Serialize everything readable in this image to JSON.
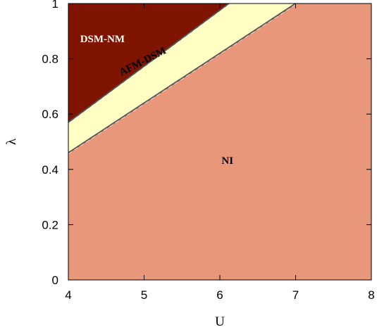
{
  "chart_data": {
    "type": "area",
    "title": "",
    "xlabel": "U",
    "ylabel": "λ",
    "xlim": [
      4,
      8
    ],
    "ylim": [
      0,
      1
    ],
    "xticks": [
      4,
      5,
      6,
      7,
      8
    ],
    "yticks": [
      0,
      0.2,
      0.4,
      0.6,
      0.8,
      1
    ],
    "ytick_labels": [
      "0",
      "0.2",
      "0.4",
      "0.6",
      "0.8",
      "1"
    ],
    "grid": false,
    "boundaries": [
      {
        "x": [
          4,
          6.12
        ],
        "y": [
          0.57,
          1.0
        ]
      },
      {
        "x": [
          4,
          7.0
        ],
        "y": [
          0.46,
          1.0
        ]
      }
    ],
    "regions": [
      {
        "label": "DSM-NM",
        "color": "#7f1500",
        "label_x": 4.45,
        "label_y": 0.86,
        "label_color": "#ffffff",
        "label_rotation": 0
      },
      {
        "label": "AFM-DSM",
        "color": "#ffffc4",
        "label_x": 5.0,
        "label_y": 0.78,
        "label_color": "#000000",
        "label_rotation": -27
      },
      {
        "label": "NI",
        "color": "#e8977a",
        "label_x": 6.1,
        "label_y": 0.42,
        "label_color": "#000000",
        "label_rotation": 0
      }
    ]
  }
}
